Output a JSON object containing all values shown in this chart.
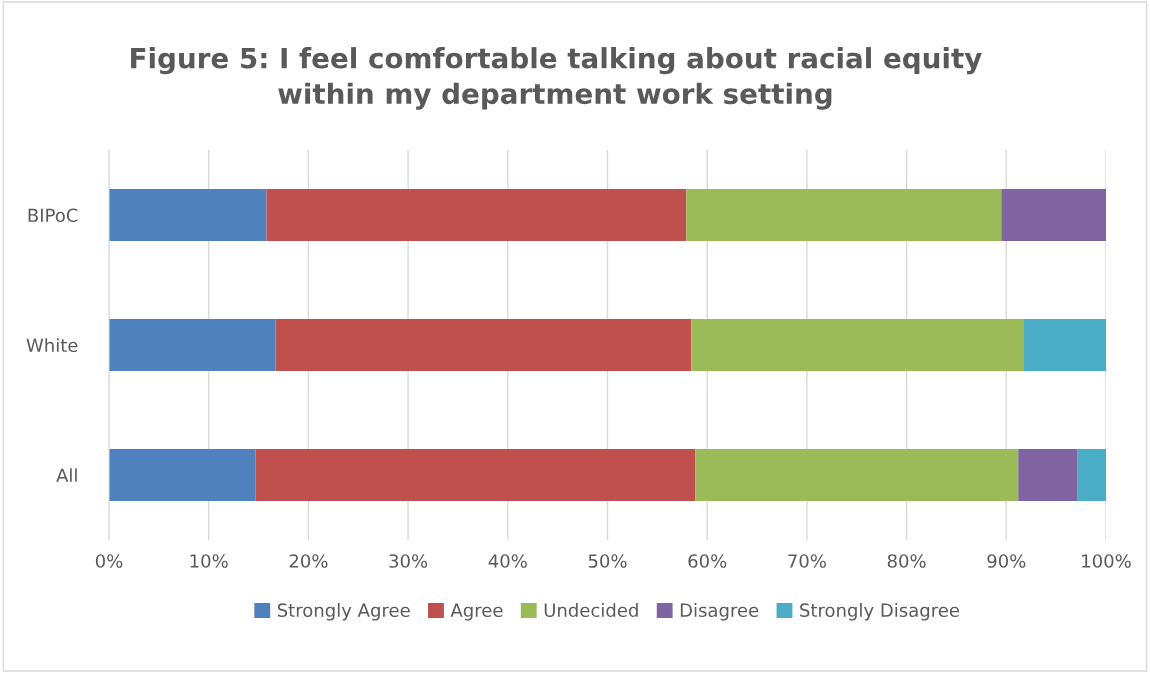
{
  "chart_data": {
    "type": "bar",
    "orientation": "horizontal",
    "stacked": true,
    "title": "Figure 5: I feel comfortable talking about racial equity\nwithin my department work setting",
    "categories": [
      "BIPoC",
      "White",
      "All"
    ],
    "series": [
      {
        "name": "Strongly Agree",
        "color": "#4f81bd",
        "values": [
          15.8,
          16.7,
          14.7
        ]
      },
      {
        "name": "Agree",
        "color": "#c0504d",
        "values": [
          42.1,
          41.7,
          44.1
        ]
      },
      {
        "name": "Undecided",
        "color": "#9bbb59",
        "values": [
          31.6,
          33.3,
          32.4
        ]
      },
      {
        "name": "Disagree",
        "color": "#8064a2",
        "values": [
          10.5,
          0,
          5.9
        ]
      },
      {
        "name": "Strongly Disagree",
        "color": "#4bacc6",
        "values": [
          0,
          8.3,
          2.9
        ]
      }
    ],
    "xlim": [
      0,
      100
    ],
    "xticks": [
      {
        "value": 0,
        "label": "0%"
      },
      {
        "value": 10,
        "label": "10%"
      },
      {
        "value": 20,
        "label": "20%"
      },
      {
        "value": 30,
        "label": "30%"
      },
      {
        "value": 40,
        "label": "40%"
      },
      {
        "value": 50,
        "label": "50%"
      },
      {
        "value": 60,
        "label": "60%"
      },
      {
        "value": 70,
        "label": "70%"
      },
      {
        "value": 80,
        "label": "80%"
      },
      {
        "value": 90,
        "label": "90%"
      },
      {
        "value": 100,
        "label": "100%"
      }
    ],
    "grid": "x",
    "legend": "bottom"
  }
}
